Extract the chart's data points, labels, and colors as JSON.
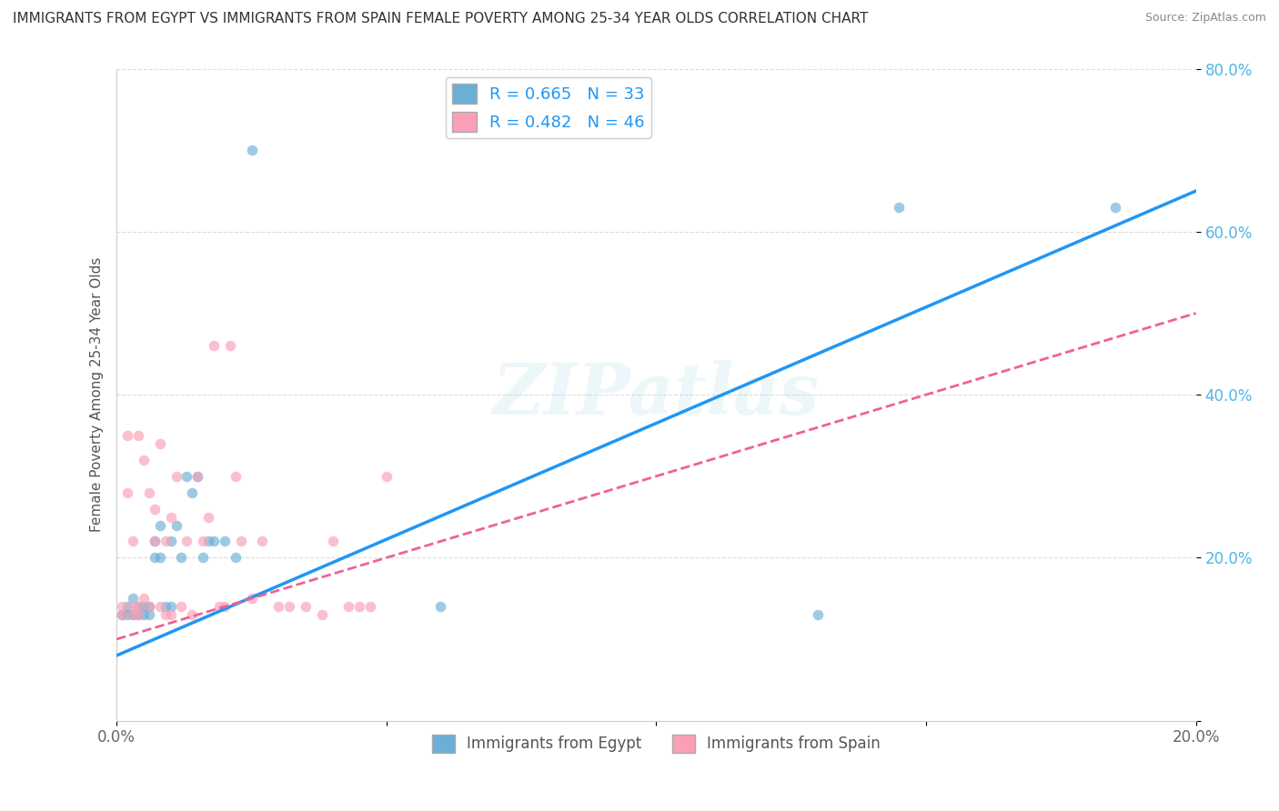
{
  "title": "IMMIGRANTS FROM EGYPT VS IMMIGRANTS FROM SPAIN FEMALE POVERTY AMONG 25-34 YEAR OLDS CORRELATION CHART",
  "source": "Source: ZipAtlas.com",
  "xlabel": "",
  "ylabel": "Female Poverty Among 25-34 Year Olds",
  "xlim": [
    0.0,
    0.2
  ],
  "ylim": [
    0.0,
    0.8
  ],
  "xticks": [
    0.0,
    0.05,
    0.1,
    0.15,
    0.2
  ],
  "yticks": [
    0.0,
    0.2,
    0.4,
    0.6,
    0.8
  ],
  "egypt_color": "#6baed6",
  "spain_color": "#fa9fb5",
  "egypt_line_color": "#2196F3",
  "spain_line_color": "#F06292",
  "egypt_R": 0.665,
  "egypt_N": 33,
  "spain_R": 0.482,
  "spain_N": 46,
  "legend_label_egypt": "Immigrants from Egypt",
  "legend_label_spain": "Immigrants from Spain",
  "egypt_x": [
    0.001,
    0.002,
    0.002,
    0.003,
    0.003,
    0.004,
    0.004,
    0.005,
    0.005,
    0.006,
    0.006,
    0.007,
    0.007,
    0.008,
    0.008,
    0.009,
    0.01,
    0.01,
    0.011,
    0.012,
    0.013,
    0.014,
    0.015,
    0.016,
    0.017,
    0.018,
    0.02,
    0.022,
    0.025,
    0.06,
    0.13,
    0.145,
    0.185
  ],
  "egypt_y": [
    0.13,
    0.13,
    0.14,
    0.15,
    0.13,
    0.13,
    0.14,
    0.13,
    0.14,
    0.13,
    0.14,
    0.2,
    0.22,
    0.24,
    0.2,
    0.14,
    0.22,
    0.14,
    0.24,
    0.2,
    0.3,
    0.28,
    0.3,
    0.2,
    0.22,
    0.22,
    0.22,
    0.2,
    0.7,
    0.14,
    0.13,
    0.63,
    0.63
  ],
  "spain_x": [
    0.001,
    0.001,
    0.002,
    0.002,
    0.003,
    0.003,
    0.003,
    0.004,
    0.004,
    0.004,
    0.005,
    0.005,
    0.006,
    0.006,
    0.007,
    0.007,
    0.008,
    0.008,
    0.009,
    0.009,
    0.01,
    0.01,
    0.011,
    0.012,
    0.013,
    0.014,
    0.015,
    0.016,
    0.017,
    0.018,
    0.019,
    0.02,
    0.021,
    0.022,
    0.023,
    0.025,
    0.027,
    0.03,
    0.032,
    0.035,
    0.038,
    0.04,
    0.043,
    0.045,
    0.047,
    0.05
  ],
  "spain_y": [
    0.13,
    0.14,
    0.28,
    0.35,
    0.14,
    0.22,
    0.13,
    0.13,
    0.35,
    0.14,
    0.15,
    0.32,
    0.14,
    0.28,
    0.26,
    0.22,
    0.34,
    0.14,
    0.22,
    0.13,
    0.25,
    0.13,
    0.3,
    0.14,
    0.22,
    0.13,
    0.3,
    0.22,
    0.25,
    0.46,
    0.14,
    0.14,
    0.46,
    0.3,
    0.22,
    0.15,
    0.22,
    0.14,
    0.14,
    0.14,
    0.13,
    0.22,
    0.14,
    0.14,
    0.14,
    0.3
  ],
  "egypt_regline_x": [
    0.0,
    0.2
  ],
  "egypt_regline_y": [
    0.08,
    0.65
  ],
  "spain_regline_x": [
    0.0,
    0.2
  ],
  "spain_regline_y": [
    0.1,
    0.5
  ]
}
